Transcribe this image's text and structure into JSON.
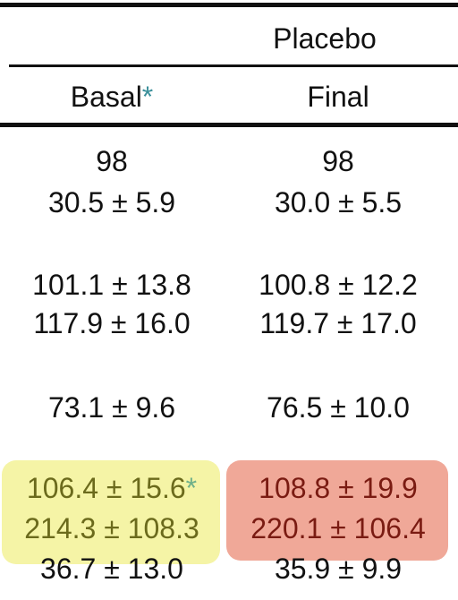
{
  "header": {
    "group": "Placebo",
    "columns": [
      {
        "label": "Basal",
        "note": "*"
      },
      {
        "label": "Final"
      }
    ]
  },
  "table": {
    "rows": [
      [
        "98",
        "98"
      ],
      [
        "30.5 ± 5.9",
        "30.0 ± 5.5"
      ],
      [
        "101.1 ± 13.8",
        "100.8 ± 12.2"
      ],
      [
        "117.9 ± 16.0",
        "119.7 ± 17.0"
      ],
      [
        "73.1 ± 9.6",
        "76.5 ± 10.0"
      ],
      [
        {
          "text": "106.4 ± 15.6",
          "note": "*"
        },
        "108.8 ± 19.9"
      ],
      [
        "214.3 ± 108.3",
        "220.1 ± 106.4"
      ],
      [
        "36.7 ± 13.0",
        "35.9 ± 9.9"
      ]
    ]
  }
}
